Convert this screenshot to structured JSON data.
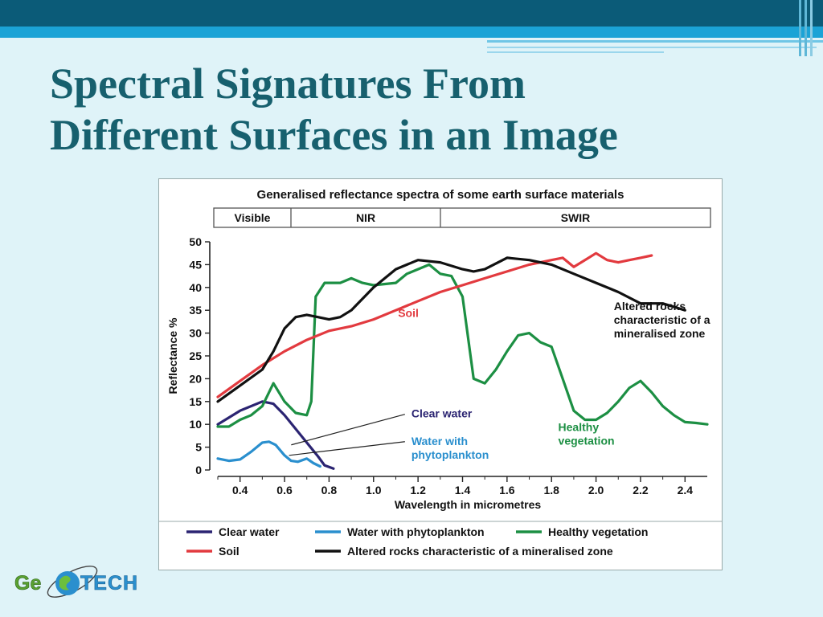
{
  "slide": {
    "title_line1": "Spectral Signatures From",
    "title_line2": "Different Surfaces in an Image"
  },
  "logo": {
    "text_left": "Ge",
    "text_right": "TECH"
  },
  "colors": {
    "title": "#17606e",
    "banner_dark": "#0b5b78",
    "banner_light": "#1ba3d6",
    "clear_water": "#2b2472",
    "phytoplankton": "#2a8fce",
    "vegetation": "#1c8f43",
    "soil": "#e23a3f",
    "altered_rocks": "#111111"
  },
  "chart_data": {
    "type": "line",
    "title": "Generalised reflectance spectra of some earth surface materials",
    "regions": [
      "Visible",
      "NIR",
      "SWIR"
    ],
    "xlabel": "Wavelength in micrometres",
    "ylabel": "Reflectance %",
    "xlim": [
      0.3,
      2.5
    ],
    "ylim": [
      0,
      50
    ],
    "xticks": [
      0.4,
      0.6,
      0.8,
      1.0,
      1.2,
      1.4,
      1.6,
      1.8,
      2.0,
      2.2,
      2.4
    ],
    "xtick_labels": [
      "0.4",
      "0.6",
      "0.8",
      "1.0",
      "1.2",
      "1.4",
      "1.6",
      "1.8",
      "2.0",
      "2.2",
      "2.4"
    ],
    "yticks": [
      0,
      5,
      10,
      15,
      20,
      25,
      30,
      35,
      40,
      45,
      50
    ],
    "ytick_labels": [
      "0",
      "5",
      "10",
      "15",
      "20",
      "25",
      "30",
      "35",
      "40",
      "45",
      "50"
    ],
    "legend_placement": "bottom",
    "series": [
      {
        "name": "Clear water",
        "color": "#2b2472",
        "x": [
          0.3,
          0.4,
          0.5,
          0.55,
          0.6,
          0.65,
          0.7,
          0.75,
          0.78,
          0.82
        ],
        "y": [
          10,
          13,
          15,
          14.5,
          12,
          9,
          6,
          3,
          1,
          0.3
        ]
      },
      {
        "name": "Water with phytoplankton",
        "color": "#2a8fce",
        "x": [
          0.3,
          0.35,
          0.4,
          0.45,
          0.5,
          0.53,
          0.56,
          0.6,
          0.63,
          0.66,
          0.7,
          0.73,
          0.76
        ],
        "y": [
          2.5,
          2,
          2.3,
          4,
          6,
          6.2,
          5.5,
          3.2,
          2,
          1.8,
          2.5,
          1.5,
          0.8
        ]
      },
      {
        "name": "Healthy vegetation",
        "color": "#1c8f43",
        "x": [
          0.3,
          0.35,
          0.4,
          0.45,
          0.5,
          0.55,
          0.6,
          0.65,
          0.7,
          0.72,
          0.74,
          0.78,
          0.85,
          0.9,
          0.95,
          1.0,
          1.1,
          1.15,
          1.2,
          1.25,
          1.3,
          1.35,
          1.4,
          1.45,
          1.5,
          1.55,
          1.6,
          1.65,
          1.7,
          1.75,
          1.8,
          1.85,
          1.9,
          1.95,
          2.0,
          2.05,
          2.1,
          2.15,
          2.2,
          2.25,
          2.3,
          2.35,
          2.4,
          2.45,
          2.5
        ],
        "y": [
          9.5,
          9.5,
          11,
          12,
          14,
          19,
          15,
          12.5,
          12,
          15,
          38,
          41,
          41,
          42,
          41,
          40.5,
          41,
          43,
          44,
          45,
          43,
          42.5,
          38,
          20,
          19,
          22,
          26,
          29.5,
          30,
          28,
          27,
          20,
          13,
          11,
          11,
          12.5,
          15,
          18,
          19.5,
          17,
          14,
          12,
          10.5,
          10.3,
          10
        ]
      },
      {
        "name": "Soil",
        "color": "#e23a3f",
        "x": [
          0.3,
          0.4,
          0.5,
          0.6,
          0.7,
          0.8,
          0.9,
          1.0,
          1.1,
          1.2,
          1.3,
          1.4,
          1.5,
          1.6,
          1.7,
          1.8,
          1.85,
          1.9,
          1.95,
          2.0,
          2.05,
          2.1,
          2.15,
          2.2,
          2.25
        ],
        "y": [
          16,
          19.5,
          23,
          26,
          28.5,
          30.5,
          31.5,
          33,
          35,
          37,
          39,
          40.5,
          42,
          43.5,
          45,
          46,
          46.5,
          44.5,
          46,
          47.5,
          46,
          45.5,
          46,
          46.5,
          47
        ]
      },
      {
        "name": "Altered rocks characteristic of a mineralised zone",
        "color": "#111111",
        "x": [
          0.3,
          0.4,
          0.5,
          0.55,
          0.6,
          0.65,
          0.7,
          0.75,
          0.8,
          0.85,
          0.9,
          1.0,
          1.1,
          1.2,
          1.3,
          1.4,
          1.45,
          1.5,
          1.6,
          1.7,
          1.8,
          1.9,
          2.0,
          2.1,
          2.2,
          2.3,
          2.4
        ],
        "y": [
          15,
          18.5,
          22,
          26,
          31,
          33.5,
          34,
          33.5,
          33,
          33.5,
          35,
          40,
          44,
          46,
          45.5,
          44,
          43.5,
          44,
          46.5,
          46,
          45,
          43,
          41,
          39,
          36.5,
          36.5,
          35
        ]
      }
    ],
    "annotations": [
      {
        "text": "Soil",
        "x": 1.11,
        "y": 33.5,
        "color": "#e23a3f",
        "lines": [
          "Soil"
        ]
      },
      {
        "text": "Altered rocks characteristic of a mineralised zone",
        "x": 2.08,
        "y": 35,
        "color": "#111111",
        "lines": [
          "Altered rocks",
          "characteristic of a",
          "mineralised zone"
        ]
      },
      {
        "text": "Clear water",
        "x": 1.17,
        "y": 11.5,
        "color": "#2b2472",
        "lines": [
          "Clear water"
        ],
        "pointer": [
          0.63,
          5.5
        ]
      },
      {
        "text": "Water with phytoplankton",
        "x": 1.17,
        "y": 5.5,
        "color": "#2a8fce",
        "lines": [
          "Water with",
          "phytoplankton"
        ],
        "pointer": [
          0.62,
          3.2
        ]
      },
      {
        "text": "Healthy vegetation",
        "x": 1.83,
        "y": 8.5,
        "color": "#1c8f43",
        "lines": [
          "Healthy",
          "vegetation"
        ]
      }
    ],
    "legend": [
      [
        "Clear water",
        "Water with phytoplankton",
        "Healthy vegetation"
      ],
      [
        "Soil",
        "Altered rocks characteristic of a mineralised zone"
      ]
    ]
  }
}
